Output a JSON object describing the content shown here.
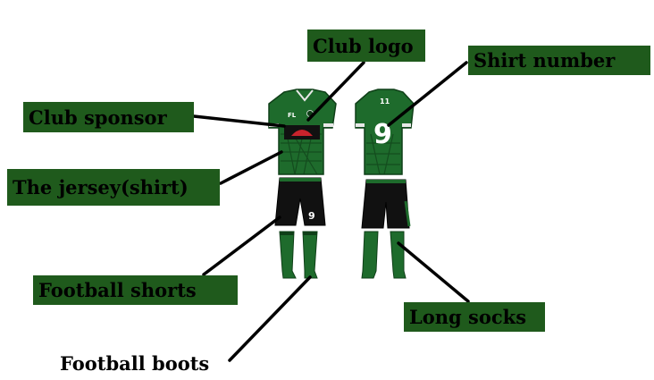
{
  "labels": {
    "club_logo": "Club logo",
    "shirt_number": "Shirt number",
    "club_sponsor": "Club sponsor",
    "jersey": "The jersey(shirt)",
    "football_shorts": "Football shorts",
    "long_socks": "Long socks",
    "football_boots": "Football boots"
  },
  "kit": {
    "front_shirt_badge": "FL",
    "back_shirt_number": "9",
    "back_collar_text": "11",
    "shorts_number": "9"
  },
  "colors": {
    "label_bg": "#1f5a1c",
    "kit_green": "#1e6b2c",
    "kit_dark": "#0f3f18",
    "shorts_black": "#111111",
    "sponsor_red": "#c8232c"
  }
}
